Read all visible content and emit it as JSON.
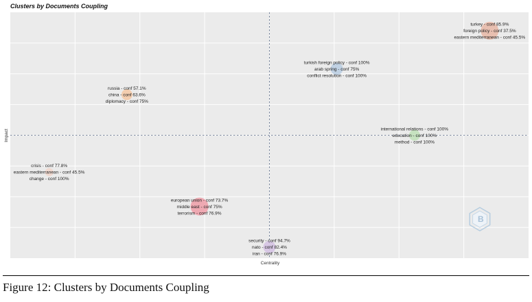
{
  "caption": "Figure 12: Clusters by Documents Coupling",
  "watermark_icon": "bibliometrix-logo-icon",
  "chart_data": {
    "type": "scatter",
    "title": "Clusters by Documents Coupling",
    "xlabel": "Centrality",
    "ylabel": "Impact",
    "grid": true,
    "legend": "none",
    "clusters": [
      {
        "labels": [
          "turkey - conf 85.9%",
          "foreign policy - conf 37.5%",
          "eastern mediterranean - conf 45.5%"
        ],
        "x": 0.85,
        "y": 0.85,
        "color": "#e7b7a6",
        "size": 13
      },
      {
        "labels": [
          "turkish foreign policy - conf 100%",
          "arab spring - conf 75%",
          "conflict resolution - conf 100%"
        ],
        "x": 0.26,
        "y": 0.54,
        "color": "#b9cde2",
        "size": 9
      },
      {
        "labels": [
          "russia - conf 57.1%",
          "china - conf 63.6%",
          "diplomacy - conf 75%"
        ],
        "x": -0.55,
        "y": 0.33,
        "color": "#f4c8a4",
        "size": 8
      },
      {
        "labels": [
          "international relations - conf 100%",
          "education - conf 100%",
          "method - conf 100%"
        ],
        "x": 0.56,
        "y": 0.0,
        "color": "#bfe0b8",
        "size": 8
      },
      {
        "labels": [
          "crisis - conf 77.8%",
          "eastern mediterranean - conf 45.5%",
          "change - conf 100%"
        ],
        "x": -0.85,
        "y": -0.3,
        "color": "#f2d7cc",
        "size": 6
      },
      {
        "labels": [
          "european union - conf 73.7%",
          "middle east - conf 75%",
          "terrorism - conf 76.9%"
        ],
        "x": -0.27,
        "y": -0.58,
        "color": "#ee9ea8",
        "size": 13
      },
      {
        "labels": [
          "security - conf 94.7%",
          "nato - conf 82.4%",
          "iran - conf 76.9%"
        ],
        "x": 0.0,
        "y": -0.91,
        "color": "#d4c1e3",
        "size": 9
      }
    ]
  }
}
